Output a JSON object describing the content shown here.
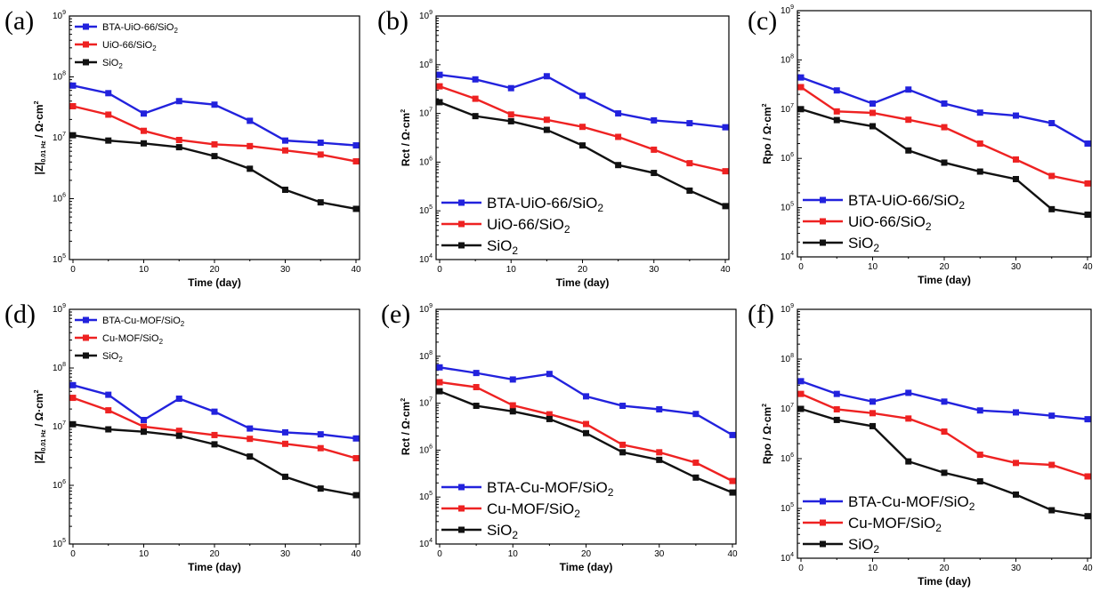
{
  "colors": {
    "blue": "#2222dd",
    "red": "#ee2222",
    "black": "#111111"
  },
  "chart_data": [
    {
      "type": "line",
      "panel_label": "(a)",
      "xlabel": "Time (day)",
      "ylabel_base": "|Z|",
      "ylabel_sub": "0.01 Hz",
      "ylabel_unit": " / Ω·cm",
      "ylabel_sup": "2",
      "x_ticks": [
        "0",
        "10",
        "20",
        "30",
        "40"
      ],
      "y_ticks": [
        {
          "b": "10",
          "e": "5"
        },
        {
          "b": "10",
          "e": "6"
        },
        {
          "b": "10",
          "e": "7"
        },
        {
          "b": "10",
          "e": "8"
        },
        {
          "b": "10",
          "e": "9"
        }
      ],
      "xlim": [
        0,
        40
      ],
      "ylim": [
        100000,
        1000000000
      ],
      "yscale": "log",
      "legend_position": "top-left",
      "legend_size": "small",
      "x": [
        0,
        5,
        10,
        15,
        20,
        25,
        30,
        35,
        40
      ],
      "series": [
        {
          "name": "BTA-UiO-66/SiO",
          "name_sub": "2",
          "color": "blue",
          "values": [
            72000000,
            54000000,
            25000000,
            40000000,
            35000000,
            19000000,
            9000000,
            8300000,
            7500000
          ]
        },
        {
          "name": "UiO-66/SiO",
          "name_sub": "2",
          "color": "red",
          "values": [
            33000000,
            24000000,
            13000000,
            9200000,
            7800000,
            7300000,
            6200000,
            5300000,
            4100000
          ]
        },
        {
          "name": "SiO",
          "name_sub": "2",
          "color": "black",
          "values": [
            11000000,
            9000000,
            8100000,
            7000000,
            5000000,
            3100000,
            1400000,
            870000,
            680000
          ]
        }
      ]
    },
    {
      "type": "line",
      "panel_label": "(b)",
      "xlabel": "Time (day)",
      "ylabel_base": "Rct",
      "ylabel_sub": "",
      "ylabel_unit": " / Ω·cm",
      "ylabel_sup": "2",
      "x_ticks": [
        "0",
        "10",
        "20",
        "30",
        "40"
      ],
      "y_ticks": [
        {
          "b": "10",
          "e": "4"
        },
        {
          "b": "10",
          "e": "5"
        },
        {
          "b": "10",
          "e": "6"
        },
        {
          "b": "10",
          "e": "7"
        },
        {
          "b": "10",
          "e": "8"
        },
        {
          "b": "10",
          "e": "9"
        }
      ],
      "xlim": [
        0,
        40
      ],
      "ylim": [
        10000,
        1000000000
      ],
      "yscale": "log",
      "legend_position": "bottom-left",
      "legend_size": "large",
      "x": [
        0,
        5,
        10,
        15,
        20,
        25,
        30,
        35,
        40
      ],
      "series": [
        {
          "name": "BTA-UiO-66/SiO",
          "name_sub": "2",
          "color": "blue",
          "values": [
            62000000,
            50000000,
            33000000,
            58000000,
            23000000,
            10000000,
            7200000,
            6300000,
            5200000
          ]
        },
        {
          "name": "UiO-66/SiO",
          "name_sub": "2",
          "color": "red",
          "values": [
            36000000,
            20000000,
            9500000,
            7400000,
            5300000,
            3300000,
            1800000,
            950000,
            650000
          ]
        },
        {
          "name": "SiO",
          "name_sub": "2",
          "color": "black",
          "values": [
            17000000,
            8800000,
            6900000,
            4600000,
            2200000,
            870000,
            600000,
            260000,
            125000
          ]
        }
      ]
    },
    {
      "type": "line",
      "panel_label": "(c)",
      "xlabel": "Time (day)",
      "ylabel_base": "Rpo",
      "ylabel_sub": "",
      "ylabel_unit": " / Ω·cm",
      "ylabel_sup": "2",
      "x_ticks": [
        "0",
        "10",
        "20",
        "30",
        "40"
      ],
      "y_ticks": [
        {
          "b": "10",
          "e": "4"
        },
        {
          "b": "10",
          "e": "5"
        },
        {
          "b": "10",
          "e": "6"
        },
        {
          "b": "10",
          "e": "7"
        },
        {
          "b": "10",
          "e": "8"
        },
        {
          "b": "10",
          "e": "9"
        }
      ],
      "xlim": [
        0,
        40
      ],
      "ylim": [
        10000,
        1000000000
      ],
      "yscale": "log",
      "legend_position": "bottom-left",
      "legend_size": "large",
      "x": [
        0,
        5,
        10,
        15,
        20,
        25,
        30,
        35,
        40
      ],
      "series": [
        {
          "name": "BTA-UiO-66/SiO",
          "name_sub": "2",
          "color": "blue",
          "values": [
            44000000,
            24000000,
            13000000,
            25000000,
            13000000,
            8500000,
            7400000,
            5200000,
            2000000
          ]
        },
        {
          "name": "UiO-66/SiO",
          "name_sub": "2",
          "color": "red",
          "values": [
            28000000,
            9000000,
            8400000,
            6100000,
            4300000,
            2000000,
            950000,
            440000,
            310000
          ]
        },
        {
          "name": "SiO",
          "name_sub": "2",
          "color": "black",
          "values": [
            10000000,
            6000000,
            4500000,
            1450000,
            820000,
            540000,
            380000,
            93000,
            72000
          ]
        }
      ]
    },
    {
      "type": "line",
      "panel_label": "(d)",
      "xlabel": "Time (day)",
      "ylabel_base": "|Z|",
      "ylabel_sub": "0.01 Hz",
      "ylabel_unit": " / Ω·cm",
      "ylabel_sup": "2",
      "x_ticks": [
        "0",
        "10",
        "20",
        "30",
        "40"
      ],
      "y_ticks": [
        {
          "b": "10",
          "e": "5"
        },
        {
          "b": "10",
          "e": "6"
        },
        {
          "b": "10",
          "e": "7"
        },
        {
          "b": "10",
          "e": "8"
        },
        {
          "b": "10",
          "e": "9"
        }
      ],
      "xlim": [
        0,
        40
      ],
      "ylim": [
        100000,
        1000000000
      ],
      "yscale": "log",
      "legend_position": "top-left",
      "legend_size": "small",
      "x": [
        0,
        5,
        10,
        15,
        20,
        25,
        30,
        35,
        40
      ],
      "series": [
        {
          "name": "BTA-Cu-MOF/SiO",
          "name_sub": "2",
          "color": "blue",
          "values": [
            51000000,
            35000000,
            13000000,
            30000000,
            18000000,
            9300000,
            8000000,
            7400000,
            6300000
          ]
        },
        {
          "name": "Cu-MOF/SiO",
          "name_sub": "2",
          "color": "red",
          "values": [
            31000000,
            19000000,
            10000000,
            8500000,
            7200000,
            6200000,
            5100000,
            4300000,
            2900000
          ]
        },
        {
          "name": "SiO",
          "name_sub": "2",
          "color": "black",
          "values": [
            11000000,
            9000000,
            8200000,
            7000000,
            5000000,
            3100000,
            1400000,
            880000,
            680000
          ]
        }
      ]
    },
    {
      "type": "line",
      "panel_label": "(e)",
      "xlabel": "Time (day)",
      "ylabel_base": "Rct",
      "ylabel_sub": "",
      "ylabel_unit": " / Ω·cm",
      "ylabel_sup": "2",
      "x_ticks": [
        "0",
        "10",
        "20",
        "30",
        "40"
      ],
      "y_ticks": [
        {
          "b": "10",
          "e": "4"
        },
        {
          "b": "10",
          "e": "5"
        },
        {
          "b": "10",
          "e": "6"
        },
        {
          "b": "10",
          "e": "7"
        },
        {
          "b": "10",
          "e": "8"
        },
        {
          "b": "10",
          "e": "9"
        }
      ],
      "xlim": [
        0,
        40
      ],
      "ylim": [
        10000,
        1000000000
      ],
      "yscale": "log",
      "legend_position": "bottom-left",
      "legend_size": "large",
      "x": [
        0,
        5,
        10,
        15,
        20,
        25,
        30,
        35,
        40
      ],
      "series": [
        {
          "name": "BTA-Cu-MOF/SiO",
          "name_sub": "2",
          "color": "blue",
          "values": [
            58000000,
            44000000,
            32000000,
            42000000,
            14000000,
            8800000,
            7400000,
            5900000,
            2100000
          ]
        },
        {
          "name": "Cu-MOF/SiO",
          "name_sub": "2",
          "color": "red",
          "values": [
            28000000,
            22000000,
            9000000,
            5800000,
            3600000,
            1300000,
            900000,
            540000,
            220000
          ]
        },
        {
          "name": "SiO",
          "name_sub": "2",
          "color": "black",
          "values": [
            18000000,
            8800000,
            6700000,
            4600000,
            2300000,
            900000,
            620000,
            260000,
            125000
          ]
        }
      ]
    },
    {
      "type": "line",
      "panel_label": "(f)",
      "xlabel": "Time (day)",
      "ylabel_base": "Rpo",
      "ylabel_sub": "",
      "ylabel_unit": " / Ω·cm",
      "ylabel_sup": "2",
      "x_ticks": [
        "0",
        "10",
        "20",
        "30",
        "40"
      ],
      "y_ticks": [
        {
          "b": "10",
          "e": "4"
        },
        {
          "b": "10",
          "e": "5"
        },
        {
          "b": "10",
          "e": "6"
        },
        {
          "b": "10",
          "e": "7"
        },
        {
          "b": "10",
          "e": "8"
        },
        {
          "b": "10",
          "e": "9"
        }
      ],
      "xlim": [
        0,
        40
      ],
      "ylim": [
        10000,
        1000000000
      ],
      "yscale": "log",
      "legend_position": "bottom-left",
      "legend_size": "large",
      "x": [
        0,
        5,
        10,
        15,
        20,
        25,
        30,
        35,
        40
      ],
      "series": [
        {
          "name": "BTA-Cu-MOF/SiO",
          "name_sub": "2",
          "color": "blue",
          "values": [
            36000000,
            20000000,
            14000000,
            21000000,
            14000000,
            9300000,
            8500000,
            7300000,
            6200000
          ]
        },
        {
          "name": "Cu-MOF/SiO",
          "name_sub": "2",
          "color": "red",
          "values": [
            20000000,
            9800000,
            8200000,
            6400000,
            3500000,
            1200000,
            820000,
            750000,
            440000
          ]
        },
        {
          "name": "SiO",
          "name_sub": "2",
          "color": "black",
          "values": [
            10000000,
            6000000,
            4500000,
            880000,
            520000,
            350000,
            190000,
            92000,
            70000
          ]
        }
      ]
    }
  ]
}
